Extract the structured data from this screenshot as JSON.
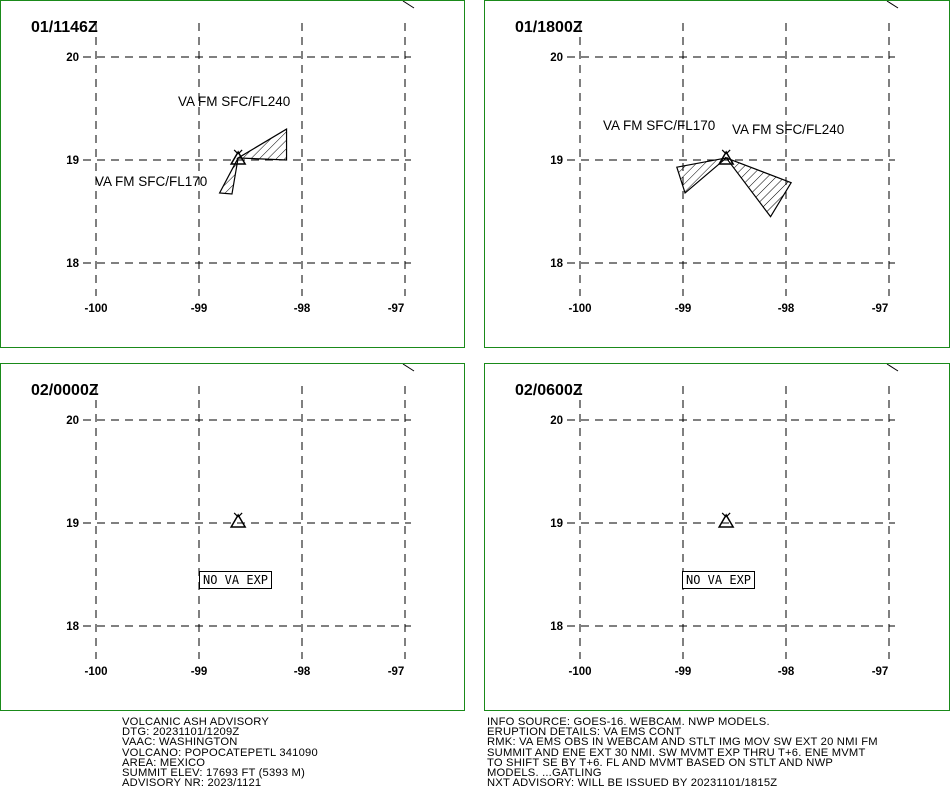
{
  "panels": [
    {
      "time": "01/1146Z",
      "labels": [
        {
          "text": "VA FM SFC/FL240"
        },
        {
          "text": "VA FM SFC/FL170"
        }
      ],
      "no_va": ""
    },
    {
      "time": "01/1800Z",
      "labels": [
        {
          "text": "VA FM SFC/FL170"
        },
        {
          "text": "VA FM SFC/FL240"
        }
      ],
      "no_va": ""
    },
    {
      "time": "02/0000Z",
      "labels": [],
      "no_va": "NO VA EXP"
    },
    {
      "time": "02/0600Z",
      "labels": [],
      "no_va": "NO VA EXP"
    }
  ],
  "axes": {
    "lat_ticks": [
      "20",
      "19",
      "18"
    ],
    "lon_ticks": [
      "-100",
      "-99",
      "-98",
      "-97"
    ]
  },
  "advisory": {
    "title": "VOLCANIC ASH ADVISORY",
    "dtg": "DTG: 20231101/1209Z",
    "vaac": "VAAC: WASHINGTON",
    "volcano": "VOLCANO: POPOCATEPETL 341090",
    "area": "AREA: MEXICO",
    "summit": "SUMMIT ELEV: 17693 FT (5393 M)",
    "advisory_nr": "ADVISORY NR: 2023/1121"
  },
  "info": {
    "line1": "INFO SOURCE: GOES-16. WEBCAM. NWP MODELS.",
    "line2": "ERUPTION DETAILS: VA EMS CONT",
    "line3": "RMK: VA EMS OBS IN WEBCAM AND STLT IMG MOV SW EXT 20 NMI FM",
    "line4": "SUMMIT AND ENE EXT 30 NMI. SW MVMT EXP THRU T+6. ENE MVMT",
    "line5": "TO SHIFT SE BY T+6. FL AND MVMT BASED ON STLT AND NWP",
    "line6": "MODELS. ...GATLING",
    "line7": "NXT ADVISORY: WILL BE ISSUED BY 20231101/1815Z"
  },
  "map": {
    "volcano_lat": 19.02,
    "volcano_lon": -98.62,
    "ash_polygons": [
      [
        {
          "level": "SFC/FL240",
          "points": [
            [
              19.02,
              -98.62
            ],
            [
              19.3,
              -98.15
            ],
            [
              19.0,
              -98.15
            ]
          ]
        },
        {
          "level": "SFC/FL170",
          "points": [
            [
              19.02,
              -98.62
            ],
            [
              18.68,
              -98.8
            ],
            [
              18.67,
              -98.68
            ]
          ]
        }
      ],
      [
        {
          "level": "SFC/FL170",
          "points": [
            [
              19.02,
              -98.58
            ],
            [
              18.93,
              -99.06
            ],
            [
              18.68,
              -98.98
            ]
          ]
        },
        {
          "level": "SFC/FL240",
          "points": [
            [
              19.02,
              -98.58
            ],
            [
              18.78,
              -97.95
            ],
            [
              18.45,
              -98.15
            ]
          ]
        }
      ],
      [],
      []
    ]
  }
}
